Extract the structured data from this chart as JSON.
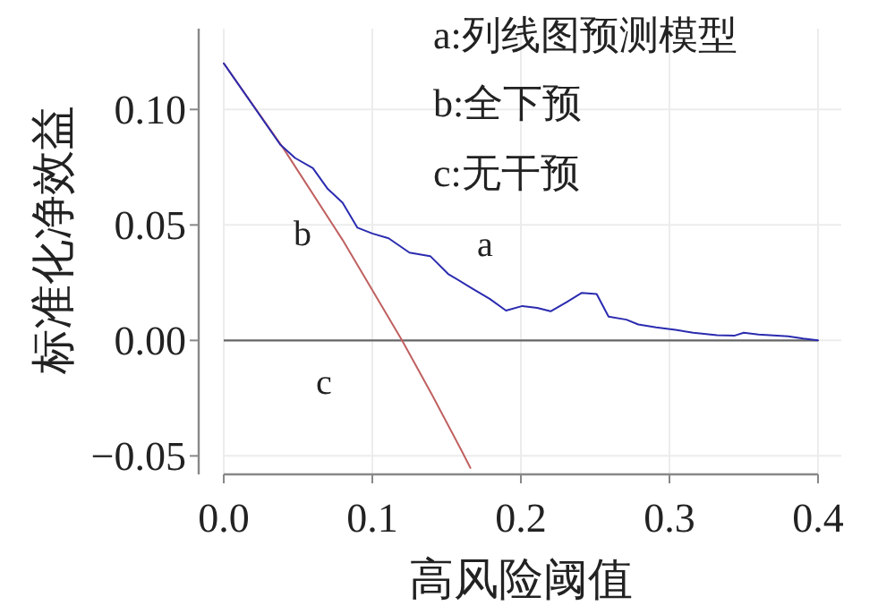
{
  "chart_data": {
    "type": "line",
    "xlabel": "高风险阈值",
    "ylabel": "标准化净效益",
    "xlim": [
      0,
      0.4
    ],
    "ylim": [
      -0.058,
      0.135
    ],
    "xticks": [
      {
        "value": 0,
        "label": "0.0"
      },
      0.1,
      0.2,
      0.3,
      0.4
    ],
    "yticks": [
      {
        "value": -0.05,
        "label": "−0.05"
      },
      {
        "value": 0,
        "label": "0.00"
      },
      {
        "value": 0.05,
        "label": "0.05"
      },
      {
        "value": 0.1,
        "label": "0.10"
      }
    ],
    "grid": true,
    "marker": "none",
    "line_style": "solid",
    "series": [
      {
        "color": "#2b2bb0",
        "x": [
          0,
          0.038,
          0.048,
          0.06,
          0.07,
          0.08,
          0.09,
          0.1,
          0.111,
          0.125,
          0.139,
          0.151,
          0.167,
          0.179,
          0.19,
          0.201,
          0.211,
          0.22,
          0.231,
          0.241,
          0.251,
          0.259,
          0.271,
          0.279,
          0.291,
          0.304,
          0.316,
          0.332,
          0.344,
          0.35,
          0.36,
          0.38,
          0.39,
          0.4
        ],
        "values": [
          0.12,
          0.0848,
          0.079,
          0.0746,
          0.0656,
          0.0596,
          0.0488,
          0.0463,
          0.0442,
          0.038,
          0.0365,
          0.0288,
          0.0226,
          0.018,
          0.0129,
          0.0149,
          0.0141,
          0.0126,
          0.0167,
          0.0206,
          0.0201,
          0.0103,
          0.009,
          0.0069,
          0.0057,
          0.0046,
          0.0033,
          0.0023,
          0.0021,
          0.0033,
          0.0026,
          0.0018,
          0.0008,
          0
        ]
      },
      {
        "color": "#c06060",
        "x": [
          0,
          0.04,
          0.08,
          0.12,
          0.14,
          0.16,
          0.166
        ],
        "values": [
          0.12,
          0.0833,
          0.0435,
          0,
          -0.0233,
          -0.0476,
          -0.0552
        ]
      }
    ],
    "ref_lines": [
      {
        "axis": "y",
        "value": 0,
        "color": "#666666"
      }
    ],
    "annotations": [
      "a:列线图预测模型",
      "b:全下预",
      "c:无干预",
      "a",
      "b",
      "c"
    ]
  }
}
